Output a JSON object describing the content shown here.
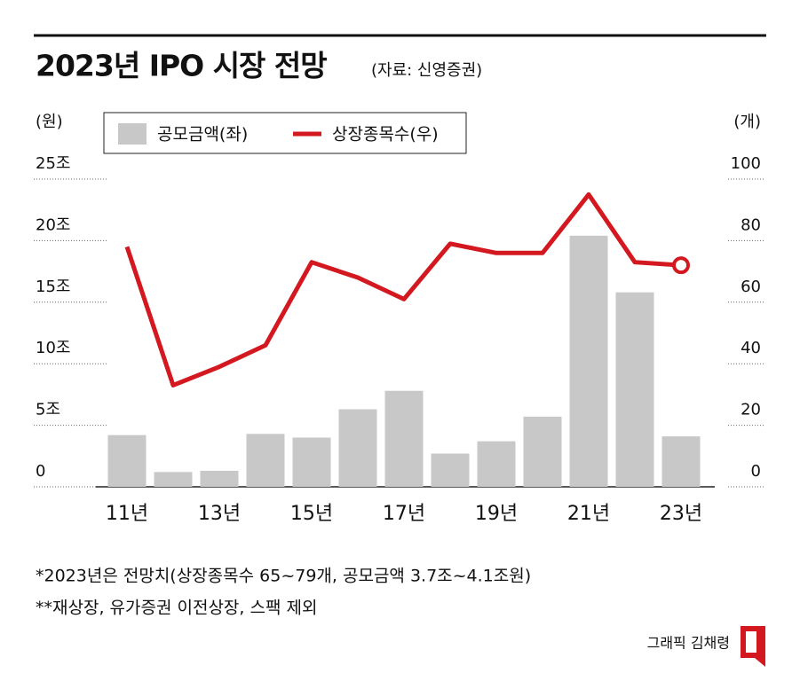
{
  "chart_data": {
    "type": "bar",
    "title": "2023년 IPO 시장 전망",
    "subtitle": "(자료: 신영증권)",
    "y_label": "(원)",
    "y2_label": "(개)",
    "categories": [
      "11년",
      null,
      "13년",
      null,
      "15년",
      null,
      "17년",
      null,
      "19년",
      null,
      "21년",
      null,
      "23년"
    ],
    "series": [
      {
        "name": "공모금액(좌)",
        "type": "bar",
        "color": "#c8c8c8",
        "values": [
          4.2,
          1.2,
          1.3,
          4.3,
          4.0,
          6.3,
          7.8,
          2.7,
          3.7,
          5.7,
          20.4,
          15.8,
          4.1
        ]
      },
      {
        "name": "상장종목수(우)",
        "type": "line",
        "axis": "y2",
        "color": "#d3181f",
        "values": [
          78,
          33,
          39,
          46,
          73,
          68,
          61,
          79,
          76,
          76,
          95,
          73,
          72
        ]
      }
    ],
    "ylim": [
      0,
      25
    ],
    "yticks": [
      0,
      {
        "value": 5,
        "label": "5조"
      },
      {
        "value": 10,
        "label": "10조"
      },
      {
        "value": 15,
        "label": "15조"
      },
      {
        "value": 20,
        "label": "20조"
      },
      {
        "value": 25,
        "label": "25조"
      }
    ],
    "y2lim": [
      0,
      100
    ],
    "y2ticks": [
      0,
      20,
      40,
      60,
      80,
      100
    ],
    "grid": true,
    "notes": [
      "*2023년은 전망치(상장종목수 65~79개, 공모금액 3.7조~4.1조원)",
      "**재상장, 유가증권 이전상장, 스팩 제외"
    ],
    "credit": "그래픽 김채령"
  }
}
